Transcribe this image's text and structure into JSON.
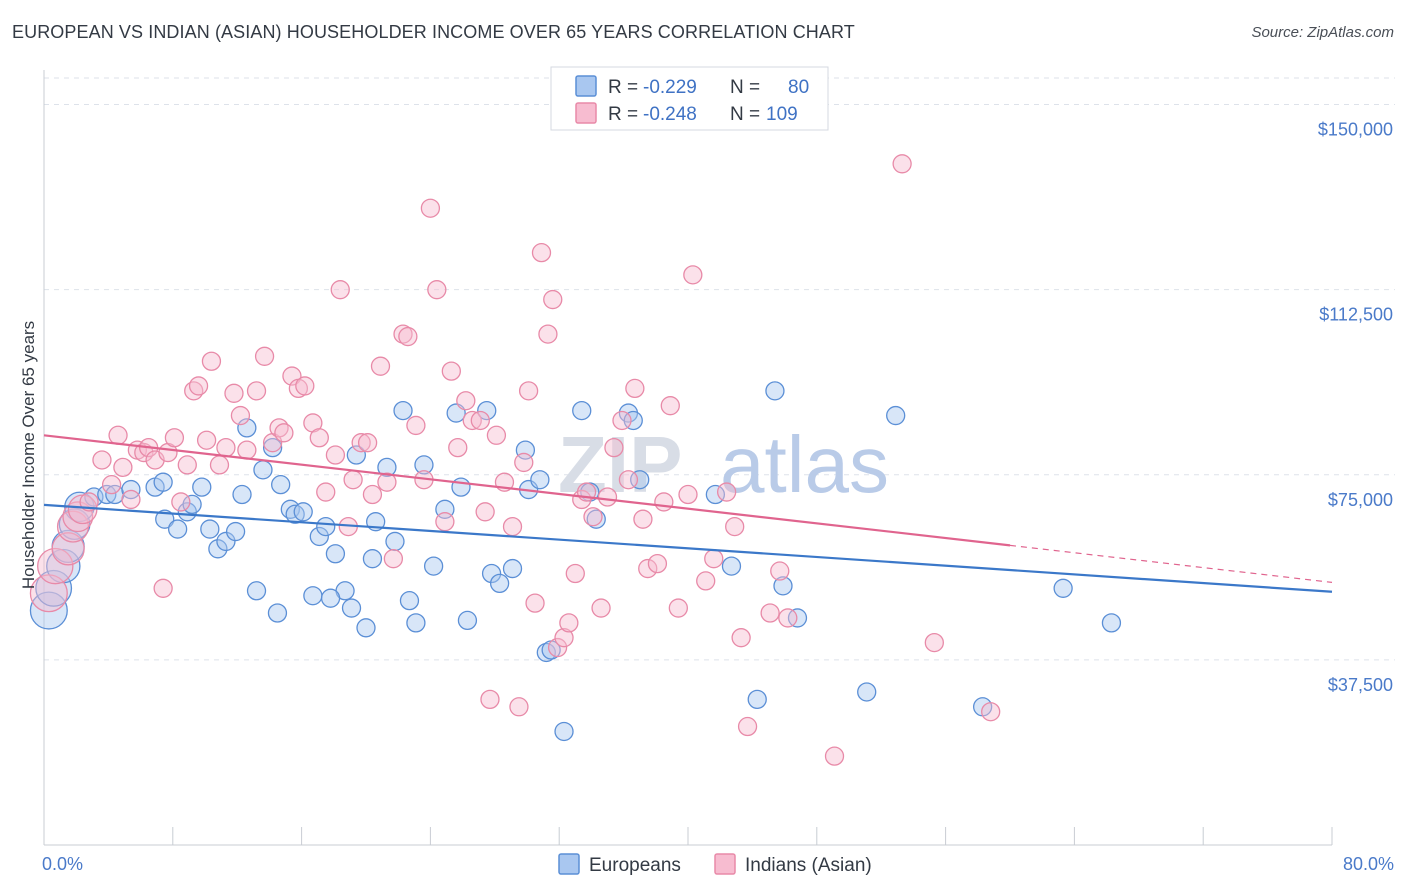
{
  "title": "EUROPEAN VS INDIAN (ASIAN) HOUSEHOLDER INCOME OVER 65 YEARS CORRELATION CHART",
  "source": "Source: ZipAtlas.com",
  "watermark": {
    "zip": "ZIP",
    "atlas": "atlas"
  },
  "colors": {
    "blue_fill": "#a9c7f0",
    "blue_stroke": "#5b8fd6",
    "blue_line": "#3b78c9",
    "pink_fill": "#f7bcd0",
    "pink_stroke": "#e88aa8",
    "pink_line": "#e0648e",
    "axis_text": "#4a7ac9",
    "grid": "#dde2ea"
  },
  "legend": {
    "rows": [
      {
        "r_label": "R =",
        "r_value": "-0.229",
        "n_label": "N =",
        "n_value": "80"
      },
      {
        "r_label": "R =",
        "r_value": "-0.248",
        "n_label": "N =",
        "n_value": "109"
      }
    ]
  },
  "bottom_legend": [
    "Europeans",
    "Indians (Asian)"
  ],
  "chart_data": {
    "type": "scatter",
    "title": "EUROPEAN VS INDIAN (ASIAN) HOUSEHOLDER INCOME OVER 65 YEARS CORRELATION CHART",
    "xlabel": "",
    "ylabel": "Householder Income Over 65 years",
    "xlim": [
      0,
      80
    ],
    "ylim": [
      0,
      157000
    ],
    "x_tick_labels": [
      "0.0%",
      "80.0%"
    ],
    "y_ticks": [
      37500,
      75000,
      112500,
      150000
    ],
    "y_tick_labels": [
      "$37,500",
      "$75,000",
      "$112,500",
      "$150,000"
    ],
    "grid": true,
    "legend_position": "top-center",
    "series": [
      {
        "name": "Europeans",
        "trend": {
          "x0": 0,
          "y0": 68900,
          "x1": 80,
          "y1": 51300
        },
        "points": [
          [
            0.3,
            47500
          ],
          [
            0.6,
            52000
          ],
          [
            1.2,
            56500
          ],
          [
            1.5,
            60500
          ],
          [
            1.9,
            65000
          ],
          [
            2.2,
            68500
          ],
          [
            3.1,
            70500
          ],
          [
            3.9,
            71000
          ],
          [
            4.4,
            71000
          ],
          [
            5.4,
            72000
          ],
          [
            6.9,
            72500
          ],
          [
            7.4,
            73500
          ],
          [
            7.5,
            66000
          ],
          [
            8.3,
            64000
          ],
          [
            8.9,
            67500
          ],
          [
            9.2,
            69000
          ],
          [
            9.8,
            72500
          ],
          [
            10.3,
            64000
          ],
          [
            10.8,
            60000
          ],
          [
            11.3,
            61500
          ],
          [
            11.9,
            63500
          ],
          [
            12.3,
            71000
          ],
          [
            12.6,
            84500
          ],
          [
            13.2,
            51500
          ],
          [
            13.6,
            76000
          ],
          [
            14.2,
            80500
          ],
          [
            14.7,
            73000
          ],
          [
            15.3,
            68000
          ],
          [
            15.6,
            67000
          ],
          [
            16.1,
            67500
          ],
          [
            16.7,
            50500
          ],
          [
            17.1,
            62500
          ],
          [
            17.5,
            64500
          ],
          [
            18.1,
            59000
          ],
          [
            18.7,
            51500
          ],
          [
            19.1,
            48000
          ],
          [
            19.4,
            79000
          ],
          [
            20.4,
            58000
          ],
          [
            20.6,
            65500
          ],
          [
            21.3,
            76500
          ],
          [
            21.8,
            61500
          ],
          [
            22.3,
            88000
          ],
          [
            22.7,
            49500
          ],
          [
            23.1,
            45000
          ],
          [
            23.6,
            77000
          ],
          [
            24.2,
            56500
          ],
          [
            24.9,
            68000
          ],
          [
            25.6,
            87500
          ],
          [
            25.9,
            72500
          ],
          [
            26.3,
            45500
          ],
          [
            27.5,
            88000
          ],
          [
            27.8,
            55000
          ],
          [
            28.3,
            53000
          ],
          [
            29.1,
            56000
          ],
          [
            29.9,
            80000
          ],
          [
            30.1,
            72000
          ],
          [
            30.8,
            74000
          ],
          [
            31.2,
            39000
          ],
          [
            31.5,
            39500
          ],
          [
            32.3,
            23000
          ],
          [
            33.4,
            88000
          ],
          [
            33.9,
            71500
          ],
          [
            34.3,
            66000
          ],
          [
            36.3,
            87500
          ],
          [
            36.6,
            86000
          ],
          [
            37.0,
            74000
          ],
          [
            41.7,
            71000
          ],
          [
            42.7,
            56500
          ],
          [
            44.3,
            29500
          ],
          [
            45.4,
            92000
          ],
          [
            45.9,
            52500
          ],
          [
            46.8,
            46000
          ],
          [
            51.1,
            31000
          ],
          [
            52.9,
            87000
          ],
          [
            58.3,
            28000
          ],
          [
            63.3,
            52000
          ],
          [
            66.3,
            45000
          ],
          [
            17.8,
            50000
          ],
          [
            20.0,
            44000
          ],
          [
            14.5,
            47000
          ]
        ]
      },
      {
        "name": "Indians (Asian)",
        "trend": {
          "x0": 0,
          "y0": 83000,
          "x1": 60,
          "y1": 60700,
          "dash_x1": 80,
          "dash_y1": 53200
        },
        "points": [
          [
            0.3,
            51000
          ],
          [
            0.7,
            56500
          ],
          [
            1.5,
            60000
          ],
          [
            1.8,
            64500
          ],
          [
            2.1,
            66500
          ],
          [
            2.4,
            68000
          ],
          [
            2.8,
            69500
          ],
          [
            3.6,
            78000
          ],
          [
            4.2,
            73000
          ],
          [
            4.6,
            83000
          ],
          [
            4.9,
            76500
          ],
          [
            5.4,
            70000
          ],
          [
            5.8,
            80000
          ],
          [
            6.2,
            79500
          ],
          [
            6.5,
            80500
          ],
          [
            6.9,
            78000
          ],
          [
            7.4,
            52000
          ],
          [
            7.7,
            79500
          ],
          [
            8.1,
            82500
          ],
          [
            8.5,
            69500
          ],
          [
            8.9,
            77000
          ],
          [
            9.3,
            92000
          ],
          [
            9.6,
            93000
          ],
          [
            10.1,
            82000
          ],
          [
            10.4,
            98000
          ],
          [
            10.9,
            77000
          ],
          [
            11.3,
            80500
          ],
          [
            11.8,
            91500
          ],
          [
            12.2,
            87000
          ],
          [
            12.6,
            80000
          ],
          [
            13.2,
            92000
          ],
          [
            13.7,
            99000
          ],
          [
            14.2,
            81500
          ],
          [
            14.6,
            84500
          ],
          [
            14.9,
            83500
          ],
          [
            15.4,
            95000
          ],
          [
            15.8,
            92500
          ],
          [
            16.2,
            93000
          ],
          [
            16.7,
            85500
          ],
          [
            17.1,
            82500
          ],
          [
            17.5,
            71500
          ],
          [
            18.1,
            79000
          ],
          [
            18.4,
            112500
          ],
          [
            18.9,
            64500
          ],
          [
            19.2,
            74000
          ],
          [
            19.7,
            81500
          ],
          [
            20.1,
            81500
          ],
          [
            20.4,
            71000
          ],
          [
            20.9,
            97000
          ],
          [
            21.3,
            73500
          ],
          [
            21.7,
            58000
          ],
          [
            22.3,
            103500
          ],
          [
            22.6,
            103000
          ],
          [
            23.1,
            85000
          ],
          [
            23.6,
            74000
          ],
          [
            24.0,
            129000
          ],
          [
            24.4,
            112500
          ],
          [
            24.9,
            65500
          ],
          [
            25.3,
            96000
          ],
          [
            25.7,
            80500
          ],
          [
            26.2,
            90000
          ],
          [
            26.6,
            86000
          ],
          [
            27.1,
            86000
          ],
          [
            27.4,
            67500
          ],
          [
            27.7,
            29500
          ],
          [
            28.1,
            83000
          ],
          [
            28.6,
            73500
          ],
          [
            29.1,
            64500
          ],
          [
            29.5,
            28000
          ],
          [
            29.8,
            77500
          ],
          [
            30.1,
            92000
          ],
          [
            30.5,
            49000
          ],
          [
            30.9,
            120000
          ],
          [
            31.3,
            103500
          ],
          [
            31.6,
            110500
          ],
          [
            31.9,
            40000
          ],
          [
            32.3,
            42000
          ],
          [
            32.6,
            45000
          ],
          [
            33.0,
            55000
          ],
          [
            33.4,
            70000
          ],
          [
            33.7,
            71500
          ],
          [
            34.1,
            66500
          ],
          [
            34.6,
            48000
          ],
          [
            35.0,
            70500
          ],
          [
            35.4,
            80500
          ],
          [
            35.9,
            86000
          ],
          [
            36.3,
            74000
          ],
          [
            36.7,
            92500
          ],
          [
            37.2,
            66000
          ],
          [
            37.5,
            56000
          ],
          [
            38.1,
            57000
          ],
          [
            38.5,
            69500
          ],
          [
            38.9,
            89000
          ],
          [
            39.4,
            48000
          ],
          [
            40.0,
            71000
          ],
          [
            40.3,
            115500
          ],
          [
            41.1,
            53500
          ],
          [
            41.6,
            58000
          ],
          [
            42.4,
            71500
          ],
          [
            42.9,
            64500
          ],
          [
            43.3,
            42000
          ],
          [
            43.7,
            24000
          ],
          [
            45.1,
            47000
          ],
          [
            45.7,
            55500
          ],
          [
            46.2,
            46000
          ],
          [
            49.1,
            18000
          ],
          [
            53.3,
            138000
          ],
          [
            55.3,
            41000
          ],
          [
            58.8,
            27000
          ]
        ]
      }
    ]
  }
}
